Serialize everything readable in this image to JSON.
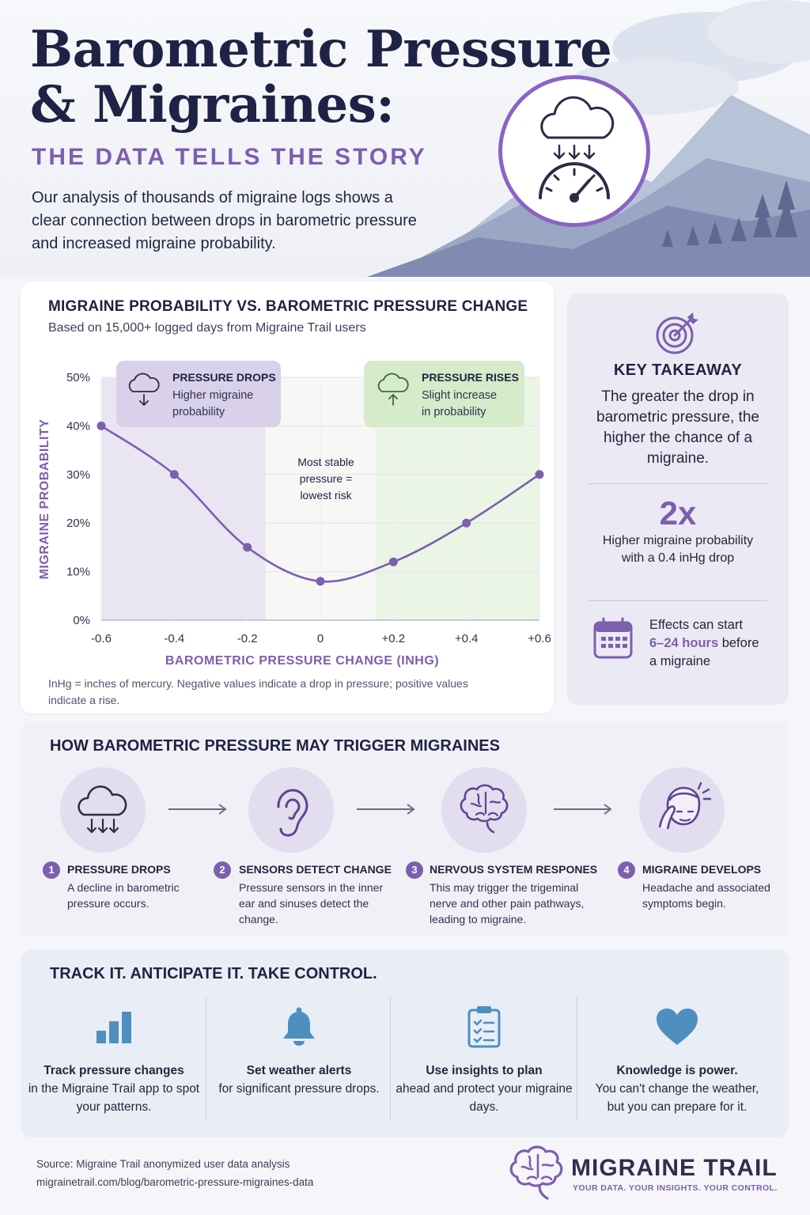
{
  "hero": {
    "title_line1": "Barometric Pressure",
    "title_line2": "& Migraines:",
    "subtitle": "THE DATA TELLS THE STORY",
    "intro": "Our analysis of thousands of migraine logs shows a clear connection between drops in barometric pressure and increased migraine probability."
  },
  "chart_card": {
    "footnote": "InHg = inches of mercury. Negative values indicate a drop in pressure; positive values indicate a rise."
  },
  "chart_data": {
    "type": "line",
    "title": "MIGRAINE PROBABILITY VS. BAROMETRIC PRESSURE CHANGE",
    "subtitle": "Based on 15,000+ logged days from Migraine Trail users",
    "xlabel": "BAROMETRIC PRESSURE CHANGE (INHG)",
    "ylabel": "MIGRAINE PROBABILITY",
    "x": [
      -0.6,
      -0.4,
      -0.2,
      0,
      0.2,
      0.4,
      0.6
    ],
    "x_ticks": [
      "-0.6",
      "-0.4",
      "-0.2",
      "0",
      "+0.2",
      "+0.4",
      "+0.6"
    ],
    "y_ticks": [
      "0%",
      "10%",
      "20%",
      "30%",
      "40%",
      "50%"
    ],
    "xlim": [
      -0.6,
      0.6
    ],
    "ylim": [
      0,
      50
    ],
    "series": [
      {
        "points": [
          {
            "x": -0.6,
            "y": 40
          },
          {
            "x": -0.4,
            "y": 30
          },
          {
            "x": -0.2,
            "y": 15
          },
          {
            "x": 0.0,
            "y": 8
          },
          {
            "x": 0.2,
            "y": 12
          },
          {
            "x": 0.4,
            "y": 20
          },
          {
            "x": 0.6,
            "y": 30
          }
        ]
      }
    ],
    "regions": [
      {
        "from": -0.6,
        "to": -0.15,
        "color": "#e6e0f1"
      },
      {
        "from": 0.15,
        "to": 0.6,
        "color": "#e8f3e0"
      }
    ],
    "line_color": "#7c5fae",
    "annotations": {
      "drops_head": "PRESSURE DROPS",
      "drops_line1": "Higher migraine",
      "drops_line2": "probability",
      "rises_head": "PRESSURE RISES",
      "rises_line1": "Slight increase",
      "rises_line2": "in probability",
      "stable_line1": "Most stable",
      "stable_line2": "pressure =",
      "stable_line3": "lowest risk"
    }
  },
  "takeaway": {
    "heading": "KEY TAKEAWAY",
    "text": "The greater the drop in barometric pressure, the higher the chance of a migraine.",
    "big_stat": "2x",
    "stat_text": "Higher migraine probability with a 0.4 inHg drop",
    "effect_pre": "Effects can start",
    "effect_highlight": "6–24 hours",
    "effect_mid": " before",
    "effect_post": "a migraine"
  },
  "how": {
    "title": "HOW BAROMETRIC PRESSURE MAY TRIGGER MIGRAINES",
    "steps": [
      {
        "num": "1",
        "head": "PRESSURE DROPS",
        "desc": "A decline in barometric pressure occurs.",
        "icon": "cloud-pressure-drop-icon"
      },
      {
        "num": "2",
        "head": "SENSORS DETECT CHANGE",
        "desc": "Pressure sensors in the inner ear and sinuses detect the change.",
        "icon": "ear-icon"
      },
      {
        "num": "3",
        "head": "NERVOUS SYSTEM RESPONES",
        "desc": "This may trigger the trigeminal nerve and other pain pathways, leading to migraine.",
        "icon": "brain-icon"
      },
      {
        "num": "4",
        "head": "MIGRAINE DEVELOPS",
        "desc": "Headache and associated symptoms begin.",
        "icon": "headache-face-icon"
      }
    ]
  },
  "track": {
    "title": "TRACK IT. ANTICIPATE IT. TAKE CONTROL.",
    "cols": [
      {
        "bold": "Track pressure changes",
        "rest": "in the Migraine Trail app to spot your patterns.",
        "icon": "bar-chart-icon"
      },
      {
        "bold": "Set weather alerts",
        "rest": "for significant pressure drops.",
        "icon": "bell-icon"
      },
      {
        "bold": "Use insights to plan",
        "rest": "ahead and protect your migraine days.",
        "icon": "clipboard-checklist-icon"
      },
      {
        "bold": "Knowledge is power.",
        "rest": "You can't change the weather, but you can prepare for it.",
        "icon": "heart-icon"
      }
    ]
  },
  "footer": {
    "source": "Source: Migraine Trail anonymized user data analysis",
    "url": "migrainetrail.com/blog/barometric-pressure-migraines-data",
    "brand": "MIGRAINE TRAIL",
    "tagline": "YOUR DATA. YOUR INSIGHTS. YOUR CONTROL."
  }
}
